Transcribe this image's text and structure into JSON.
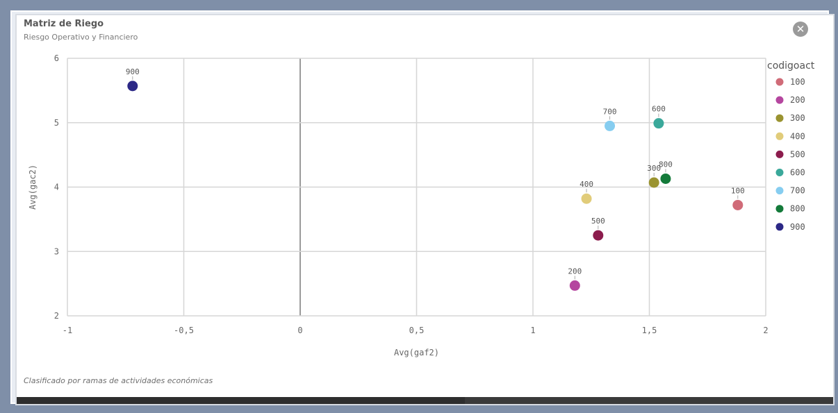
{
  "panel": {
    "title": "Matriz de Riego",
    "subtitle": "Riesgo Operativo y Financiero",
    "close_icon": "close-icon",
    "close_glyph": "✕",
    "footnote": "Clasificado por ramas de actividades económicas"
  },
  "chart_data": {
    "type": "scatter",
    "xlabel": "Avg(gaf2)",
    "ylabel": "Avg(gac2)",
    "xlim": [
      -1,
      2
    ],
    "ylim": [
      2,
      6
    ],
    "x_ticks": [
      -1,
      -0.5,
      0,
      0.5,
      1,
      1.5,
      2
    ],
    "x_tick_labels": [
      "-1",
      "-0,5",
      "0",
      "0,5",
      "1",
      "1,5",
      "2"
    ],
    "y_ticks": [
      2,
      3,
      4,
      5,
      6
    ],
    "y_tick_labels": [
      "2",
      "3",
      "4",
      "5",
      "6"
    ],
    "grid": true,
    "legend_title": "codigoact",
    "legend_position": "right",
    "points": [
      {
        "label": "100",
        "x": 1.88,
        "y": 3.72,
        "color": "#d06b78"
      },
      {
        "label": "200",
        "x": 1.18,
        "y": 2.47,
        "color": "#b5469f"
      },
      {
        "label": "300",
        "x": 1.52,
        "y": 4.07,
        "color": "#9a9330"
      },
      {
        "label": "400",
        "x": 1.23,
        "y": 3.82,
        "color": "#e1cc7a"
      },
      {
        "label": "500",
        "x": 1.28,
        "y": 3.25,
        "color": "#8c1c4d"
      },
      {
        "label": "600",
        "x": 1.54,
        "y": 4.99,
        "color": "#3aa89a"
      },
      {
        "label": "700",
        "x": 1.33,
        "y": 4.95,
        "color": "#86cdf0"
      },
      {
        "label": "800",
        "x": 1.57,
        "y": 4.13,
        "color": "#147a3a"
      },
      {
        "label": "900",
        "x": -0.72,
        "y": 5.57,
        "color": "#2c2886"
      }
    ]
  }
}
